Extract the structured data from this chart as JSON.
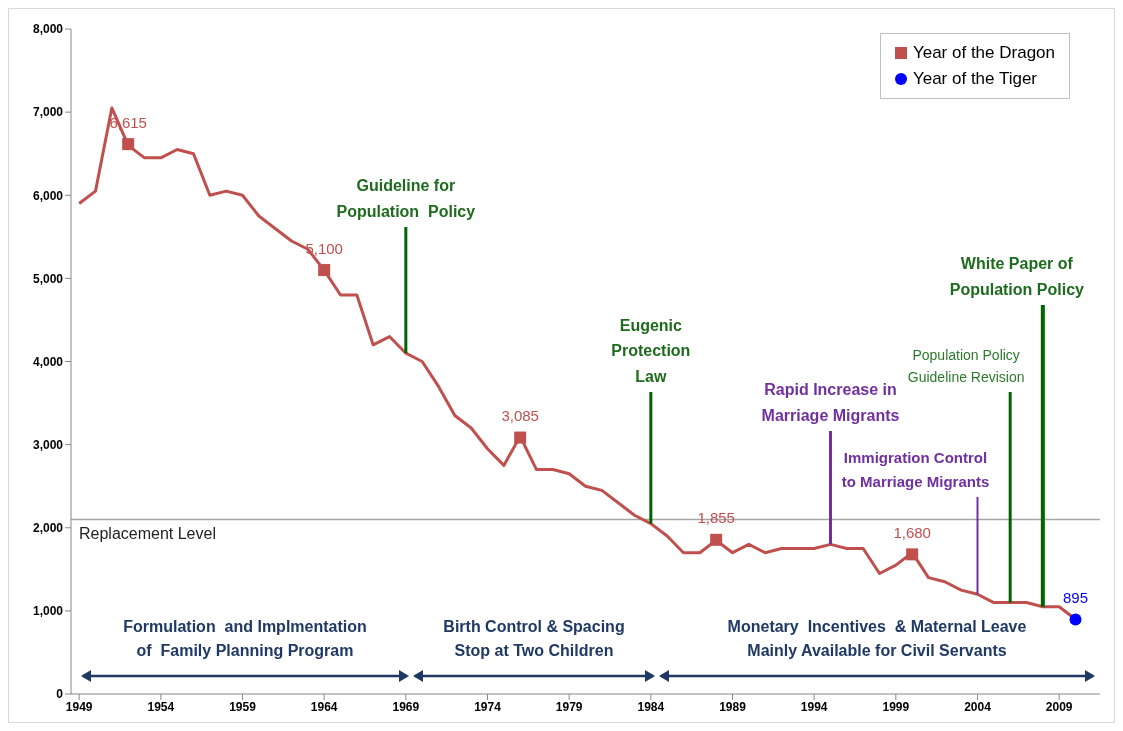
{
  "chart_data": {
    "type": "line",
    "x": [
      1949,
      1950,
      1951,
      1952,
      1953,
      1954,
      1955,
      1956,
      1957,
      1958,
      1959,
      1960,
      1961,
      1962,
      1963,
      1964,
      1965,
      1966,
      1967,
      1968,
      1969,
      1970,
      1971,
      1972,
      1973,
      1974,
      1975,
      1976,
      1977,
      1978,
      1979,
      1980,
      1981,
      1982,
      1983,
      1984,
      1985,
      1986,
      1987,
      1988,
      1989,
      1990,
      1991,
      1992,
      1993,
      1994,
      1995,
      1996,
      1997,
      1998,
      1999,
      2000,
      2001,
      2002,
      2003,
      2004,
      2005,
      2006,
      2007,
      2008,
      2009,
      2010
    ],
    "series": [
      {
        "color": "#c0504d",
        "values": [
          5900,
          6050,
          7050,
          6600,
          6450,
          6450,
          6550,
          6500,
          6000,
          6050,
          6000,
          5750,
          5600,
          5450,
          5350,
          5100,
          4800,
          4800,
          4200,
          4300,
          4100,
          4000,
          3700,
          3350,
          3200,
          2950,
          2750,
          3100,
          2700,
          2700,
          2650,
          2500,
          2450,
          2300,
          2150,
          2050,
          1900,
          1700,
          1700,
          1850,
          1700,
          1800,
          1700,
          1750,
          1750,
          1750,
          1800,
          1750,
          1750,
          1450,
          1550,
          1700,
          1400,
          1350,
          1250,
          1200,
          1100,
          1100,
          1100,
          1050,
          1050,
          900
        ]
      },
      {
        "type": "scatter",
        "name": "Year of the Dragon",
        "color": "#c0504d",
        "marker": "square",
        "x": [
          1952,
          1964,
          1976,
          1988,
          2000
        ],
        "values": [
          6615,
          5100,
          3085,
          1855,
          1680
        ],
        "value_labels": [
          "6,615",
          "5,100",
          "3,085",
          "1,855",
          "1,680"
        ]
      },
      {
        "type": "scatter",
        "name": "Year of the Tiger",
        "color": "#0000ff",
        "marker": "circle",
        "x": [
          2010
        ],
        "values": [
          895
        ],
        "value_labels": [
          "895"
        ]
      }
    ],
    "xlim": [
      1948.5,
      2011.5
    ],
    "xticks": [
      1949,
      1954,
      1959,
      1964,
      1969,
      1974,
      1979,
      1984,
      1989,
      1994,
      1999,
      2004,
      2009
    ],
    "ylim": [
      0,
      8000
    ],
    "yticks": [
      {
        "value": 0,
        "label": "0"
      },
      {
        "value": 1000,
        "label": "1,000"
      },
      {
        "value": 2000,
        "label": "2,000"
      },
      {
        "value": 3000,
        "label": "3,000"
      },
      {
        "value": 4000,
        "label": "4,000"
      },
      {
        "value": 5000,
        "label": "5,000"
      },
      {
        "value": 6000,
        "label": "6,000"
      },
      {
        "value": 7000,
        "label": "7,000"
      },
      {
        "value": 8000,
        "label": "8,000"
      }
    ],
    "ref_lines": [
      {
        "axis": "y",
        "value": 2100,
        "label": "Replacement Level",
        "color": "#a6a6a6"
      },
      {
        "axis": "x",
        "value": 1969,
        "label": "Guideline for\nPopulation  Policy",
        "color": "#006400"
      },
      {
        "axis": "x",
        "value": 1984,
        "label": "Eugenic\nProtection\nLaw",
        "color": "#006400"
      },
      {
        "axis": "x",
        "value": 1995,
        "label": "Rapid Increase in\nMarriage Migrants",
        "color": "#7030a0"
      },
      {
        "axis": "x",
        "value": 2004,
        "label": "Immigration Control\nto Marriage Migrants",
        "color": "#7030a0"
      },
      {
        "axis": "x",
        "value": 2006,
        "label": "Population Policy\nGuideline Revision",
        "color": "#006400"
      },
      {
        "axis": "x",
        "value": 2008,
        "label": "White Paper of\nPopulation Policy",
        "color": "#006400"
      }
    ],
    "annotations": [
      "Formulation  and Implmentation\nof  Family Planning Program",
      "Birth Control & Spacing\nStop at Two Children",
      "Monetary  Incentives  & Maternal Leave\nMainly Available for Civil Servants"
    ],
    "legend": "top right",
    "line_style": "solid",
    "marker": "none"
  }
}
